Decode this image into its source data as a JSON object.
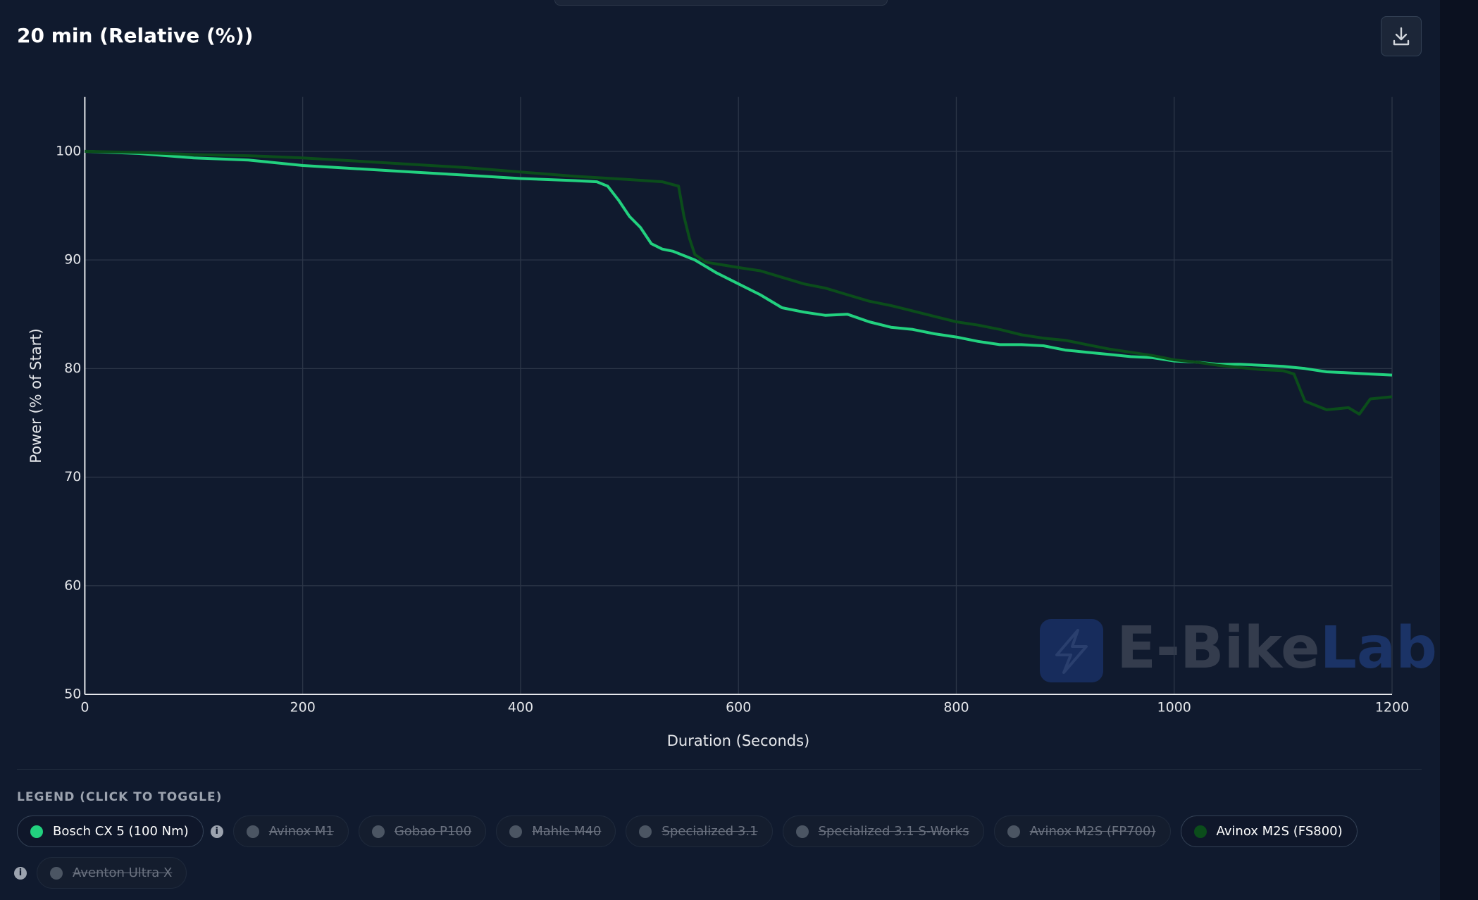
{
  "chart_data": {
    "type": "line",
    "title": "20 min (Relative (%))",
    "x_label": "Duration (Seconds)",
    "y_label": "Power (% of Start)",
    "xlim": [
      0,
      1200
    ],
    "xticks": [
      0,
      200,
      400,
      600,
      800,
      1000,
      1200
    ],
    "ylim": [
      50,
      105
    ],
    "yticks": [
      50,
      60,
      70,
      80,
      90,
      100
    ],
    "grid": true,
    "legend_title": "LEGEND (CLICK TO TOGGLE)",
    "watermark": {
      "prefix": "E-Bike",
      "suffix": "Lab"
    },
    "series": [
      {
        "name": "Bosch CX 5 (100 Nm)",
        "color": "#22d17f",
        "visible": true,
        "x": [
          0,
          50,
          100,
          150,
          200,
          250,
          300,
          350,
          400,
          450,
          470,
          480,
          490,
          500,
          510,
          520,
          530,
          540,
          560,
          580,
          600,
          620,
          640,
          660,
          680,
          700,
          720,
          740,
          760,
          780,
          800,
          820,
          840,
          860,
          880,
          900,
          920,
          940,
          960,
          980,
          1000,
          1020,
          1040,
          1060,
          1080,
          1100,
          1120,
          1140,
          1160,
          1180,
          1200
        ],
        "values": [
          100,
          99.8,
          99.4,
          99.2,
          98.7,
          98.4,
          98.1,
          97.8,
          97.5,
          97.3,
          97.2,
          96.8,
          95.5,
          94,
          93,
          91.5,
          91,
          90.8,
          90,
          88.8,
          87.8,
          86.8,
          85.6,
          85.2,
          84.9,
          85,
          84.3,
          83.8,
          83.6,
          83.2,
          82.9,
          82.5,
          82.2,
          82.2,
          82.1,
          81.7,
          81.5,
          81.3,
          81.1,
          81,
          80.7,
          80.6,
          80.4,
          80.4,
          80.3,
          80.2,
          80,
          79.7,
          79.6,
          79.5,
          79.4
        ]
      },
      {
        "name": "Avinox M1",
        "color": "#6b7280",
        "visible": false
      },
      {
        "name": "Gobao P100",
        "color": "#6b7280",
        "visible": false
      },
      {
        "name": "Mahle M40",
        "color": "#6b7280",
        "visible": false
      },
      {
        "name": "Specialized 3.1",
        "color": "#6b7280",
        "visible": false
      },
      {
        "name": "Specialized 3.1 S-Works",
        "color": "#6b7280",
        "visible": false
      },
      {
        "name": "Avinox M2S (FP700)",
        "color": "#6b7280",
        "visible": false
      },
      {
        "name": "Avinox M2S (FS800)",
        "color": "#0b4d1b",
        "visible": true,
        "x": [
          0,
          50,
          100,
          150,
          200,
          250,
          300,
          350,
          400,
          450,
          500,
          530,
          545,
          550,
          555,
          560,
          570,
          600,
          620,
          640,
          660,
          680,
          700,
          720,
          740,
          760,
          780,
          800,
          820,
          840,
          860,
          880,
          900,
          920,
          940,
          960,
          980,
          1000,
          1020,
          1040,
          1060,
          1080,
          1100,
          1110,
          1120,
          1140,
          1160,
          1170,
          1180,
          1200
        ],
        "values": [
          100,
          99.9,
          99.7,
          99.6,
          99.4,
          99.1,
          98.8,
          98.5,
          98.1,
          97.7,
          97.4,
          97.2,
          96.8,
          94,
          92,
          90.5,
          89.8,
          89.3,
          89,
          88.4,
          87.8,
          87.4,
          86.8,
          86.2,
          85.8,
          85.3,
          84.8,
          84.3,
          84,
          83.6,
          83.1,
          82.8,
          82.6,
          82.2,
          81.8,
          81.5,
          81.2,
          80.8,
          80.6,
          80.3,
          80.1,
          79.9,
          79.8,
          79.5,
          77,
          76.2,
          76.4,
          75.8,
          77.2,
          77.4
        ]
      },
      {
        "name": "Aventon Ultra X",
        "color": "#6b7280",
        "visible": false
      }
    ]
  }
}
